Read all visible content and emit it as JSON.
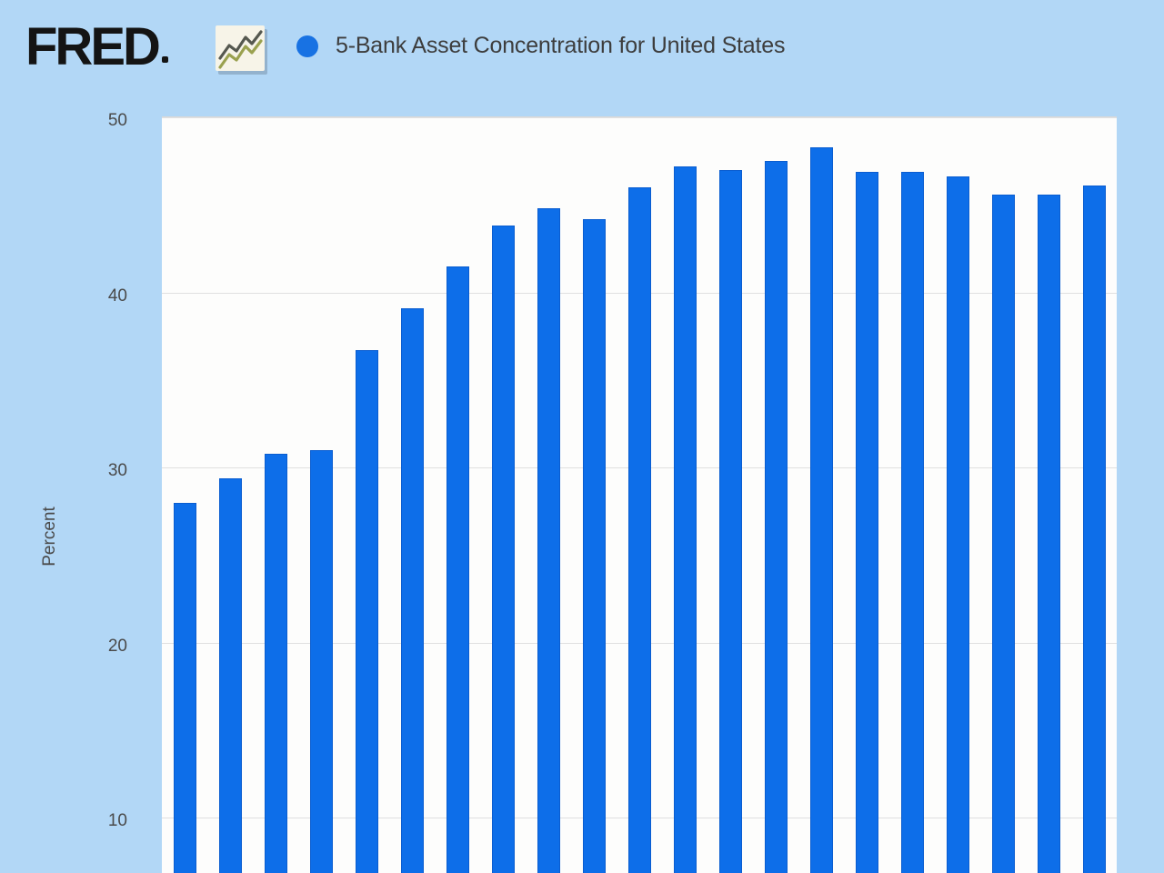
{
  "header": {
    "logo_text": "FRED",
    "title": "5-Bank Asset Concentration for United States"
  },
  "chart_data": {
    "type": "bar",
    "title": "5-Bank Asset Concentration for United States",
    "ylabel": "Percent",
    "categories": [],
    "x_axis_labels_visible": false,
    "values": [
      28.0,
      29.4,
      30.8,
      31.0,
      36.7,
      39.1,
      41.5,
      43.8,
      44.8,
      44.2,
      46.0,
      47.2,
      47.0,
      47.5,
      48.3,
      46.9,
      46.9,
      46.6,
      45.6,
      45.6,
      46.1
    ],
    "yticks": [
      50,
      40,
      30,
      20,
      10
    ],
    "y_top": 50,
    "y_bottom_visible": 6.8,
    "grid": "horizontal",
    "legend_position": "top",
    "colors": {
      "background": "#b2d7f6",
      "plot_background": "#fdfdfc",
      "bar_fill": "#0d6ee9",
      "bar_border": "#0a5dd0",
      "gridline": "#e0e0e0",
      "legend_dot": "#1872e3",
      "title_text": "#3d3d3d",
      "tick_text": "#4a4a4a",
      "logo_text": "#141414"
    }
  }
}
